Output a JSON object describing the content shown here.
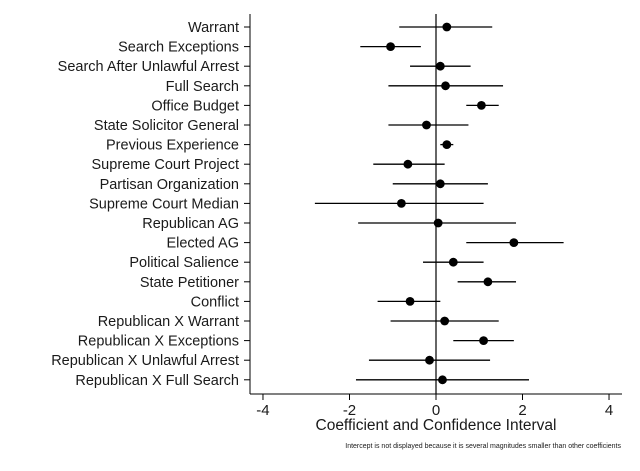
{
  "chart_data": {
    "type": "scatter",
    "subtype": "coefficient-plot-with-confidence-intervals",
    "title": "",
    "xlabel": "Coefficient and Confidence Interval",
    "ylabel": "",
    "xlim": [
      -4.3,
      4.3
    ],
    "xticks": [
      -4,
      -2,
      0,
      2,
      4
    ],
    "xtick_labels": [
      "-4",
      "-2",
      "0",
      "2",
      "4"
    ],
    "reference_line_x": 0,
    "grid": false,
    "note": "Intercept is not displayed because it is several magnitudes smaller than other coefficients",
    "point_color": "#000000",
    "rows": [
      {
        "label": "Warrant",
        "estimate": 0.25,
        "ci_low": -0.85,
        "ci_high": 1.3
      },
      {
        "label": "Search Exceptions",
        "estimate": -1.05,
        "ci_low": -1.75,
        "ci_high": -0.35
      },
      {
        "label": "Search After Unlawful Arrest",
        "estimate": 0.1,
        "ci_low": -0.6,
        "ci_high": 0.8
      },
      {
        "label": "Full Search",
        "estimate": 0.22,
        "ci_low": -1.1,
        "ci_high": 1.55
      },
      {
        "label": "Office Budget",
        "estimate": 1.05,
        "ci_low": 0.7,
        "ci_high": 1.45
      },
      {
        "label": "State Solicitor General",
        "estimate": -0.22,
        "ci_low": -1.1,
        "ci_high": 0.75
      },
      {
        "label": "Previous Experience",
        "estimate": 0.25,
        "ci_low": 0.1,
        "ci_high": 0.4
      },
      {
        "label": "Supreme Court Project",
        "estimate": -0.65,
        "ci_low": -1.45,
        "ci_high": 0.2
      },
      {
        "label": "Partisan Organization",
        "estimate": 0.1,
        "ci_low": -1.0,
        "ci_high": 1.2
      },
      {
        "label": "Supreme Court Median",
        "estimate": -0.8,
        "ci_low": -2.8,
        "ci_high": 1.1
      },
      {
        "label": "Republican AG",
        "estimate": 0.05,
        "ci_low": -1.8,
        "ci_high": 1.85
      },
      {
        "label": "Elected AG",
        "estimate": 1.8,
        "ci_low": 0.7,
        "ci_high": 2.95
      },
      {
        "label": "Political Salience",
        "estimate": 0.4,
        "ci_low": -0.3,
        "ci_high": 1.1
      },
      {
        "label": "State Petitioner",
        "estimate": 1.2,
        "ci_low": 0.5,
        "ci_high": 1.85
      },
      {
        "label": "Conflict",
        "estimate": -0.6,
        "ci_low": -1.35,
        "ci_high": 0.1
      },
      {
        "label": "Republican X Warrant",
        "estimate": 0.2,
        "ci_low": -1.05,
        "ci_high": 1.45
      },
      {
        "label": "Republican X Exceptions",
        "estimate": 1.1,
        "ci_low": 0.4,
        "ci_high": 1.8
      },
      {
        "label": "Republican X Unlawful Arrest",
        "estimate": -0.15,
        "ci_low": -1.55,
        "ci_high": 1.25
      },
      {
        "label": "Republican X Full Search",
        "estimate": 0.15,
        "ci_low": -1.85,
        "ci_high": 2.15
      }
    ]
  }
}
